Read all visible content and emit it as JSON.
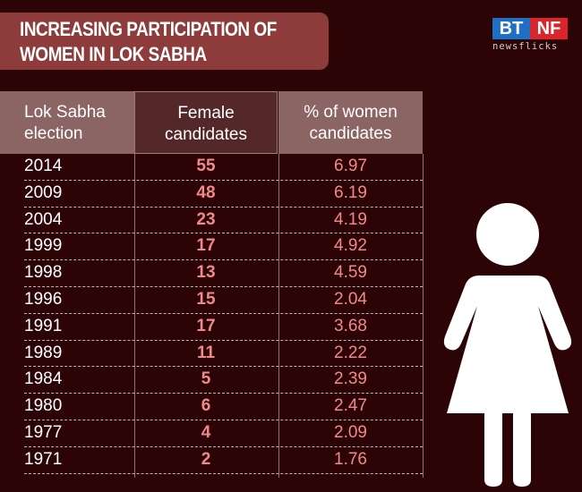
{
  "title": {
    "line1": "INCREASING PARTICIPATION OF",
    "line2": "WOMEN IN LOK SABHA"
  },
  "logo": {
    "left": "BT",
    "right": "NF",
    "sub": "newsflicks",
    "colors": {
      "left": "#1f6fc4",
      "right": "#d9262c"
    }
  },
  "colors": {
    "background": "#2d0406",
    "accent": "#f08a8a",
    "title_box": "#8e3b3b"
  },
  "icon": "woman-figure-icon",
  "chart_data": {
    "type": "table",
    "title": "INCREASING PARTICIPATION OF WOMEN IN LOK SABHA",
    "columns": [
      {
        "line1": "Lok Sabha",
        "line2": "election"
      },
      {
        "line1": "Female",
        "line2": "candidates"
      },
      {
        "line1": "% of women",
        "line2": "candidates"
      }
    ],
    "rows": [
      {
        "year": "2014",
        "female": "55",
        "pct": "6.97"
      },
      {
        "year": "2009",
        "female": "48",
        "pct": "6.19"
      },
      {
        "year": "2004",
        "female": "23",
        "pct": "4.19"
      },
      {
        "year": "1999",
        "female": "17",
        "pct": "4.92"
      },
      {
        "year": "1998",
        "female": "13",
        "pct": "4.59"
      },
      {
        "year": "1996",
        "female": "15",
        "pct": "2.04"
      },
      {
        "year": "1991",
        "female": "17",
        "pct": "3.68"
      },
      {
        "year": "1989",
        "female": "11",
        "pct": "2.22"
      },
      {
        "year": "1984",
        "female": "5",
        "pct": "2.39"
      },
      {
        "year": "1980",
        "female": "6",
        "pct": "2.47"
      },
      {
        "year": "1977",
        "female": "4",
        "pct": "2.09"
      },
      {
        "year": "1971",
        "female": "2",
        "pct": "1.76"
      }
    ]
  }
}
